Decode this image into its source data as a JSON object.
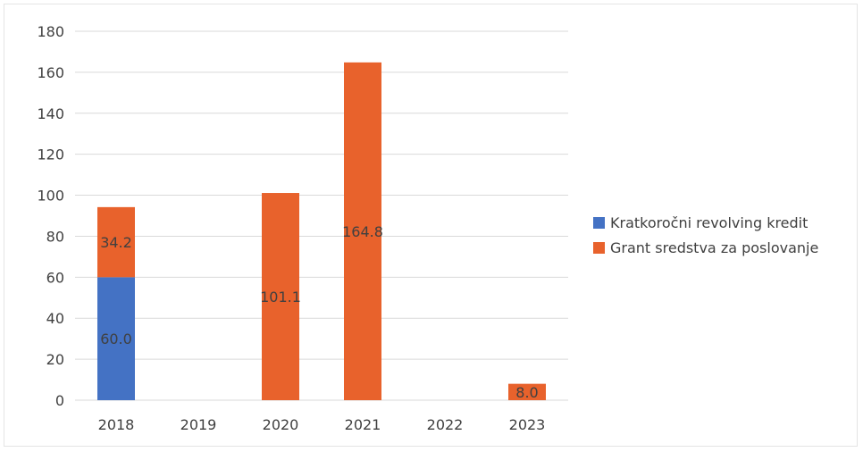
{
  "chart_data": {
    "type": "bar",
    "stacked": true,
    "categories": [
      "2018",
      "2019",
      "2020",
      "2021",
      "2022",
      "2023"
    ],
    "series": [
      {
        "name": "Kratkoročni revolving kredit",
        "color": "#4472C4",
        "values": [
          60.0,
          0,
          0,
          0,
          0,
          0
        ]
      },
      {
        "name": "Grant sredstva za poslovanje",
        "color": "#E8622C",
        "values": [
          34.2,
          0,
          101.1,
          164.8,
          0,
          8.0
        ]
      }
    ],
    "data_labels": [
      {
        "series": 0,
        "category": 0,
        "text": "60.0"
      },
      {
        "series": 1,
        "category": 0,
        "text": "34.2"
      },
      {
        "series": 1,
        "category": 2,
        "text": "101.1"
      },
      {
        "series": 1,
        "category": 3,
        "text": "164.8"
      },
      {
        "series": 1,
        "category": 5,
        "text": "8.0"
      }
    ],
    "ylim": [
      0,
      180
    ],
    "yticks": [
      0,
      20,
      40,
      60,
      80,
      100,
      120,
      140,
      160,
      180
    ],
    "grid": true,
    "legend": "right"
  }
}
